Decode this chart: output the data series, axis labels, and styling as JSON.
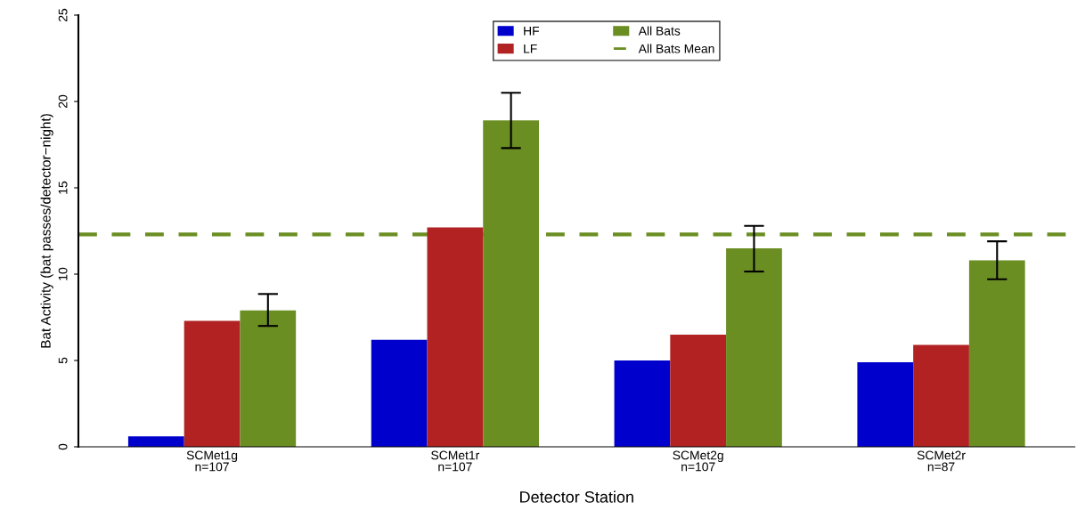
{
  "chart_data": {
    "type": "bar",
    "xlabel": "Detector Station",
    "ylabel": "Bat Activity (bat passes/detector−night)",
    "categories": [
      "SCMet1g\nn=107",
      "SCMet1r\nn=107",
      "SCMet2g\nn=107",
      "SCMet2r\nn=87"
    ],
    "series": [
      {
        "name": "HF",
        "color": "#0000cd",
        "values": [
          0.6,
          6.2,
          5.0,
          4.9
        ]
      },
      {
        "name": "LF",
        "color": "#b22222",
        "values": [
          7.3,
          12.7,
          6.5,
          5.9
        ]
      },
      {
        "name": "All Bats",
        "color": "#6b8e23",
        "values": [
          7.9,
          18.9,
          11.5,
          10.8
        ],
        "errors": [
          [
            7.0,
            8.85
          ],
          [
            17.3,
            20.5
          ],
          [
            10.15,
            12.8
          ],
          [
            9.7,
            11.9
          ]
        ]
      }
    ],
    "ref_lines": [
      {
        "axis": "y",
        "value": 12.3,
        "label": "All Bats Mean",
        "color": "#6b8e23",
        "line_style": "dashed"
      }
    ],
    "ylim": [
      0,
      25
    ],
    "yticks": [
      0,
      5,
      10,
      15,
      20,
      25
    ],
    "grid": false,
    "legend": "top"
  }
}
